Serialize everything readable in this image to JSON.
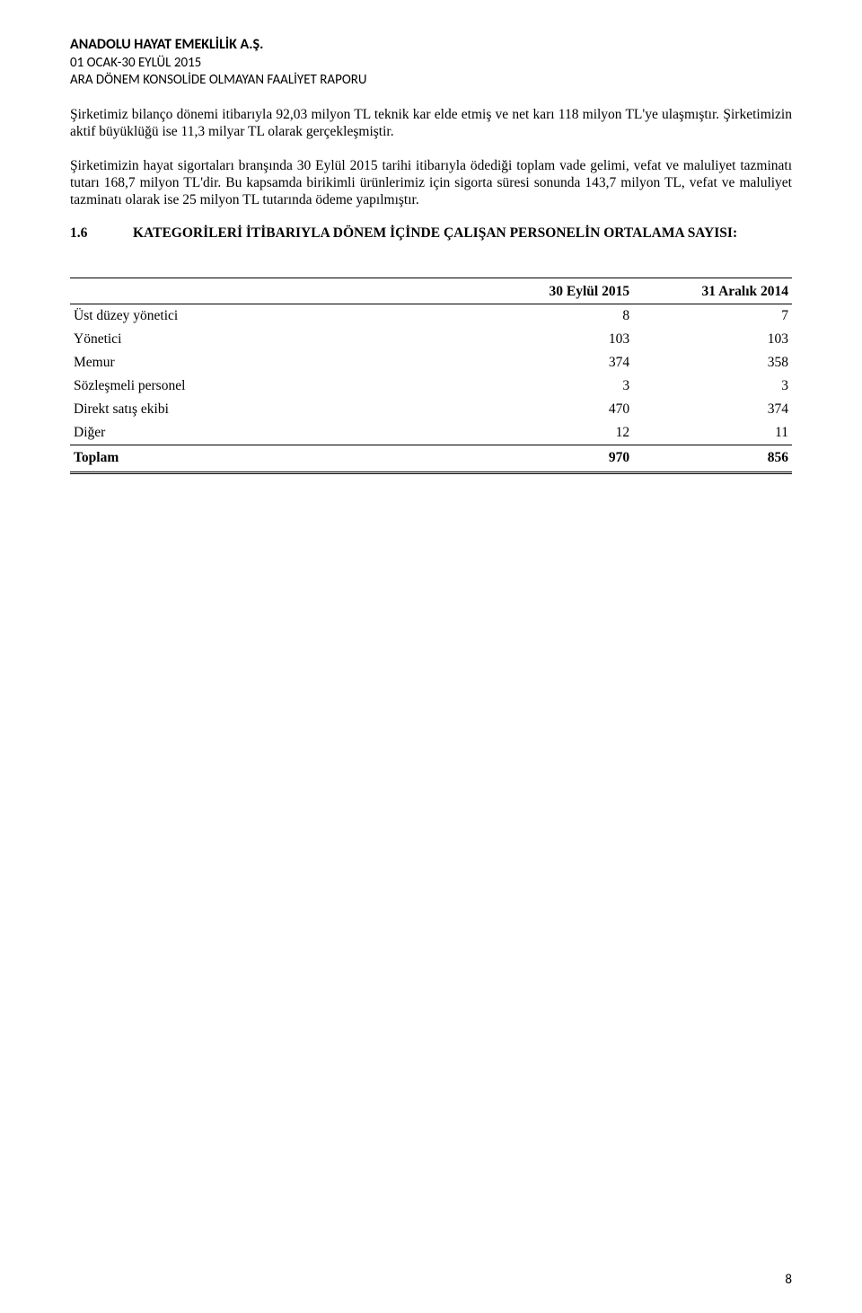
{
  "header": {
    "company": "ANADOLU HAYAT EMEKLİLİK A.Ş.",
    "period": "01 OCAK-30 EYLÜL 2015",
    "report_title": "ARA DÖNEM KONSOLİDE OLMAYAN FAALİYET RAPORU"
  },
  "paragraphs": {
    "p1": "Şirketimiz bilanço dönemi itibarıyla 92,03 milyon TL teknik kar elde etmiş ve net karı 118 milyon TL'ye ulaşmıştır. Şirketimizin aktif büyüklüğü ise 11,3 milyar TL olarak gerçekleşmiştir.",
    "p2": "Şirketimizin hayat sigortaları branşında 30 Eylül 2015 tarihi itibarıyla ödediği toplam vade gelimi, vefat ve maluliyet tazminatı tutarı 168,7 milyon TL'dir. Bu kapsamda birikimli ürünlerimiz için sigorta süresi sonunda 143,7 milyon TL, vefat ve maluliyet tazminatı olarak ise 25 milyon TL tutarında ödeme yapılmıştır."
  },
  "section": {
    "number": "1.6",
    "title": "KATEGORİLERİ İTİBARIYLA DÖNEM İÇİNDE ÇALIŞAN PERSONELİN ORTALAMA SAYISI:"
  },
  "table": {
    "columns": [
      "",
      "30 Eylül 2015",
      "31 Aralık 2014"
    ],
    "rows": [
      {
        "label": "Üst düzey yönetici",
        "v1": "8",
        "v2": "7"
      },
      {
        "label": "Yönetici",
        "v1": "103",
        "v2": "103"
      },
      {
        "label": "Memur",
        "v1": "374",
        "v2": "358"
      },
      {
        "label": "Sözleşmeli personel",
        "v1": "3",
        "v2": "3"
      },
      {
        "label": "Direkt satış ekibi",
        "v1": "470",
        "v2": "374"
      },
      {
        "label": "Diğer",
        "v1": "12",
        "v2": "11"
      }
    ],
    "total": {
      "label": "Toplam",
      "v1": "970",
      "v2": "856"
    },
    "col_widths": [
      "56%",
      "22%",
      "22%"
    ],
    "border_color": "#000000",
    "font_size_pt": 12,
    "background_color": "#ffffff"
  },
  "page_number": "8"
}
